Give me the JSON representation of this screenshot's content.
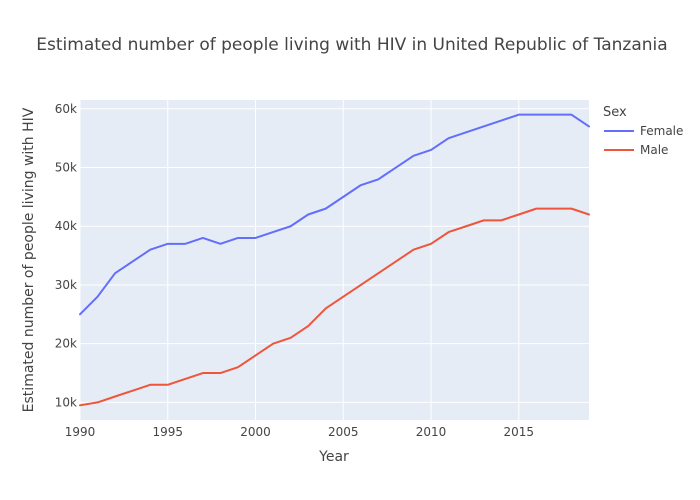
{
  "chart_data": {
    "type": "line",
    "title": "Estimated number of people living with HIV in United Republic of Tanzania",
    "xlabel": "Year",
    "ylabel": "Estimated number of people living with HIV",
    "xlim": [
      1990,
      2019
    ],
    "ylim": [
      7000,
      61500
    ],
    "x_ticks": [
      1990,
      1995,
      2000,
      2005,
      2010,
      2015
    ],
    "x_tick_labels": [
      "1990",
      "1995",
      "2000",
      "2005",
      "2010",
      "2015"
    ],
    "y_ticks": [
      10000,
      20000,
      30000,
      40000,
      50000,
      60000
    ],
    "y_tick_labels": [
      "10k",
      "20k",
      "30k",
      "40k",
      "50k",
      "60k"
    ],
    "grid": true,
    "legend_title": "Sex",
    "legend_position": "right",
    "x": [
      1990,
      1991,
      1992,
      1993,
      1994,
      1995,
      1996,
      1997,
      1998,
      1999,
      2000,
      2001,
      2002,
      2003,
      2004,
      2005,
      2006,
      2007,
      2008,
      2009,
      2010,
      2011,
      2012,
      2013,
      2014,
      2015,
      2016,
      2017,
      2018,
      2019
    ],
    "series": [
      {
        "name": "Female",
        "color": "#636efa",
        "values": [
          25000,
          28000,
          32000,
          34000,
          36000,
          37000,
          37000,
          38000,
          37000,
          38000,
          38000,
          39000,
          40000,
          42000,
          43000,
          45000,
          47000,
          48000,
          50000,
          52000,
          53000,
          55000,
          56000,
          57000,
          58000,
          59000,
          59000,
          59000,
          59000,
          57000
        ]
      },
      {
        "name": "Male",
        "color": "#ef553b",
        "values": [
          9500,
          10000,
          11000,
          12000,
          13000,
          13000,
          14000,
          15000,
          15000,
          16000,
          18000,
          20000,
          21000,
          23000,
          26000,
          28000,
          30000,
          32000,
          34000,
          36000,
          37000,
          39000,
          40000,
          41000,
          41000,
          42000,
          43000,
          43000,
          43000,
          42000
        ]
      }
    ]
  },
  "colors": {
    "plot_background": "#e5ecf6",
    "grid": "#ffffff",
    "text": "#444444"
  }
}
